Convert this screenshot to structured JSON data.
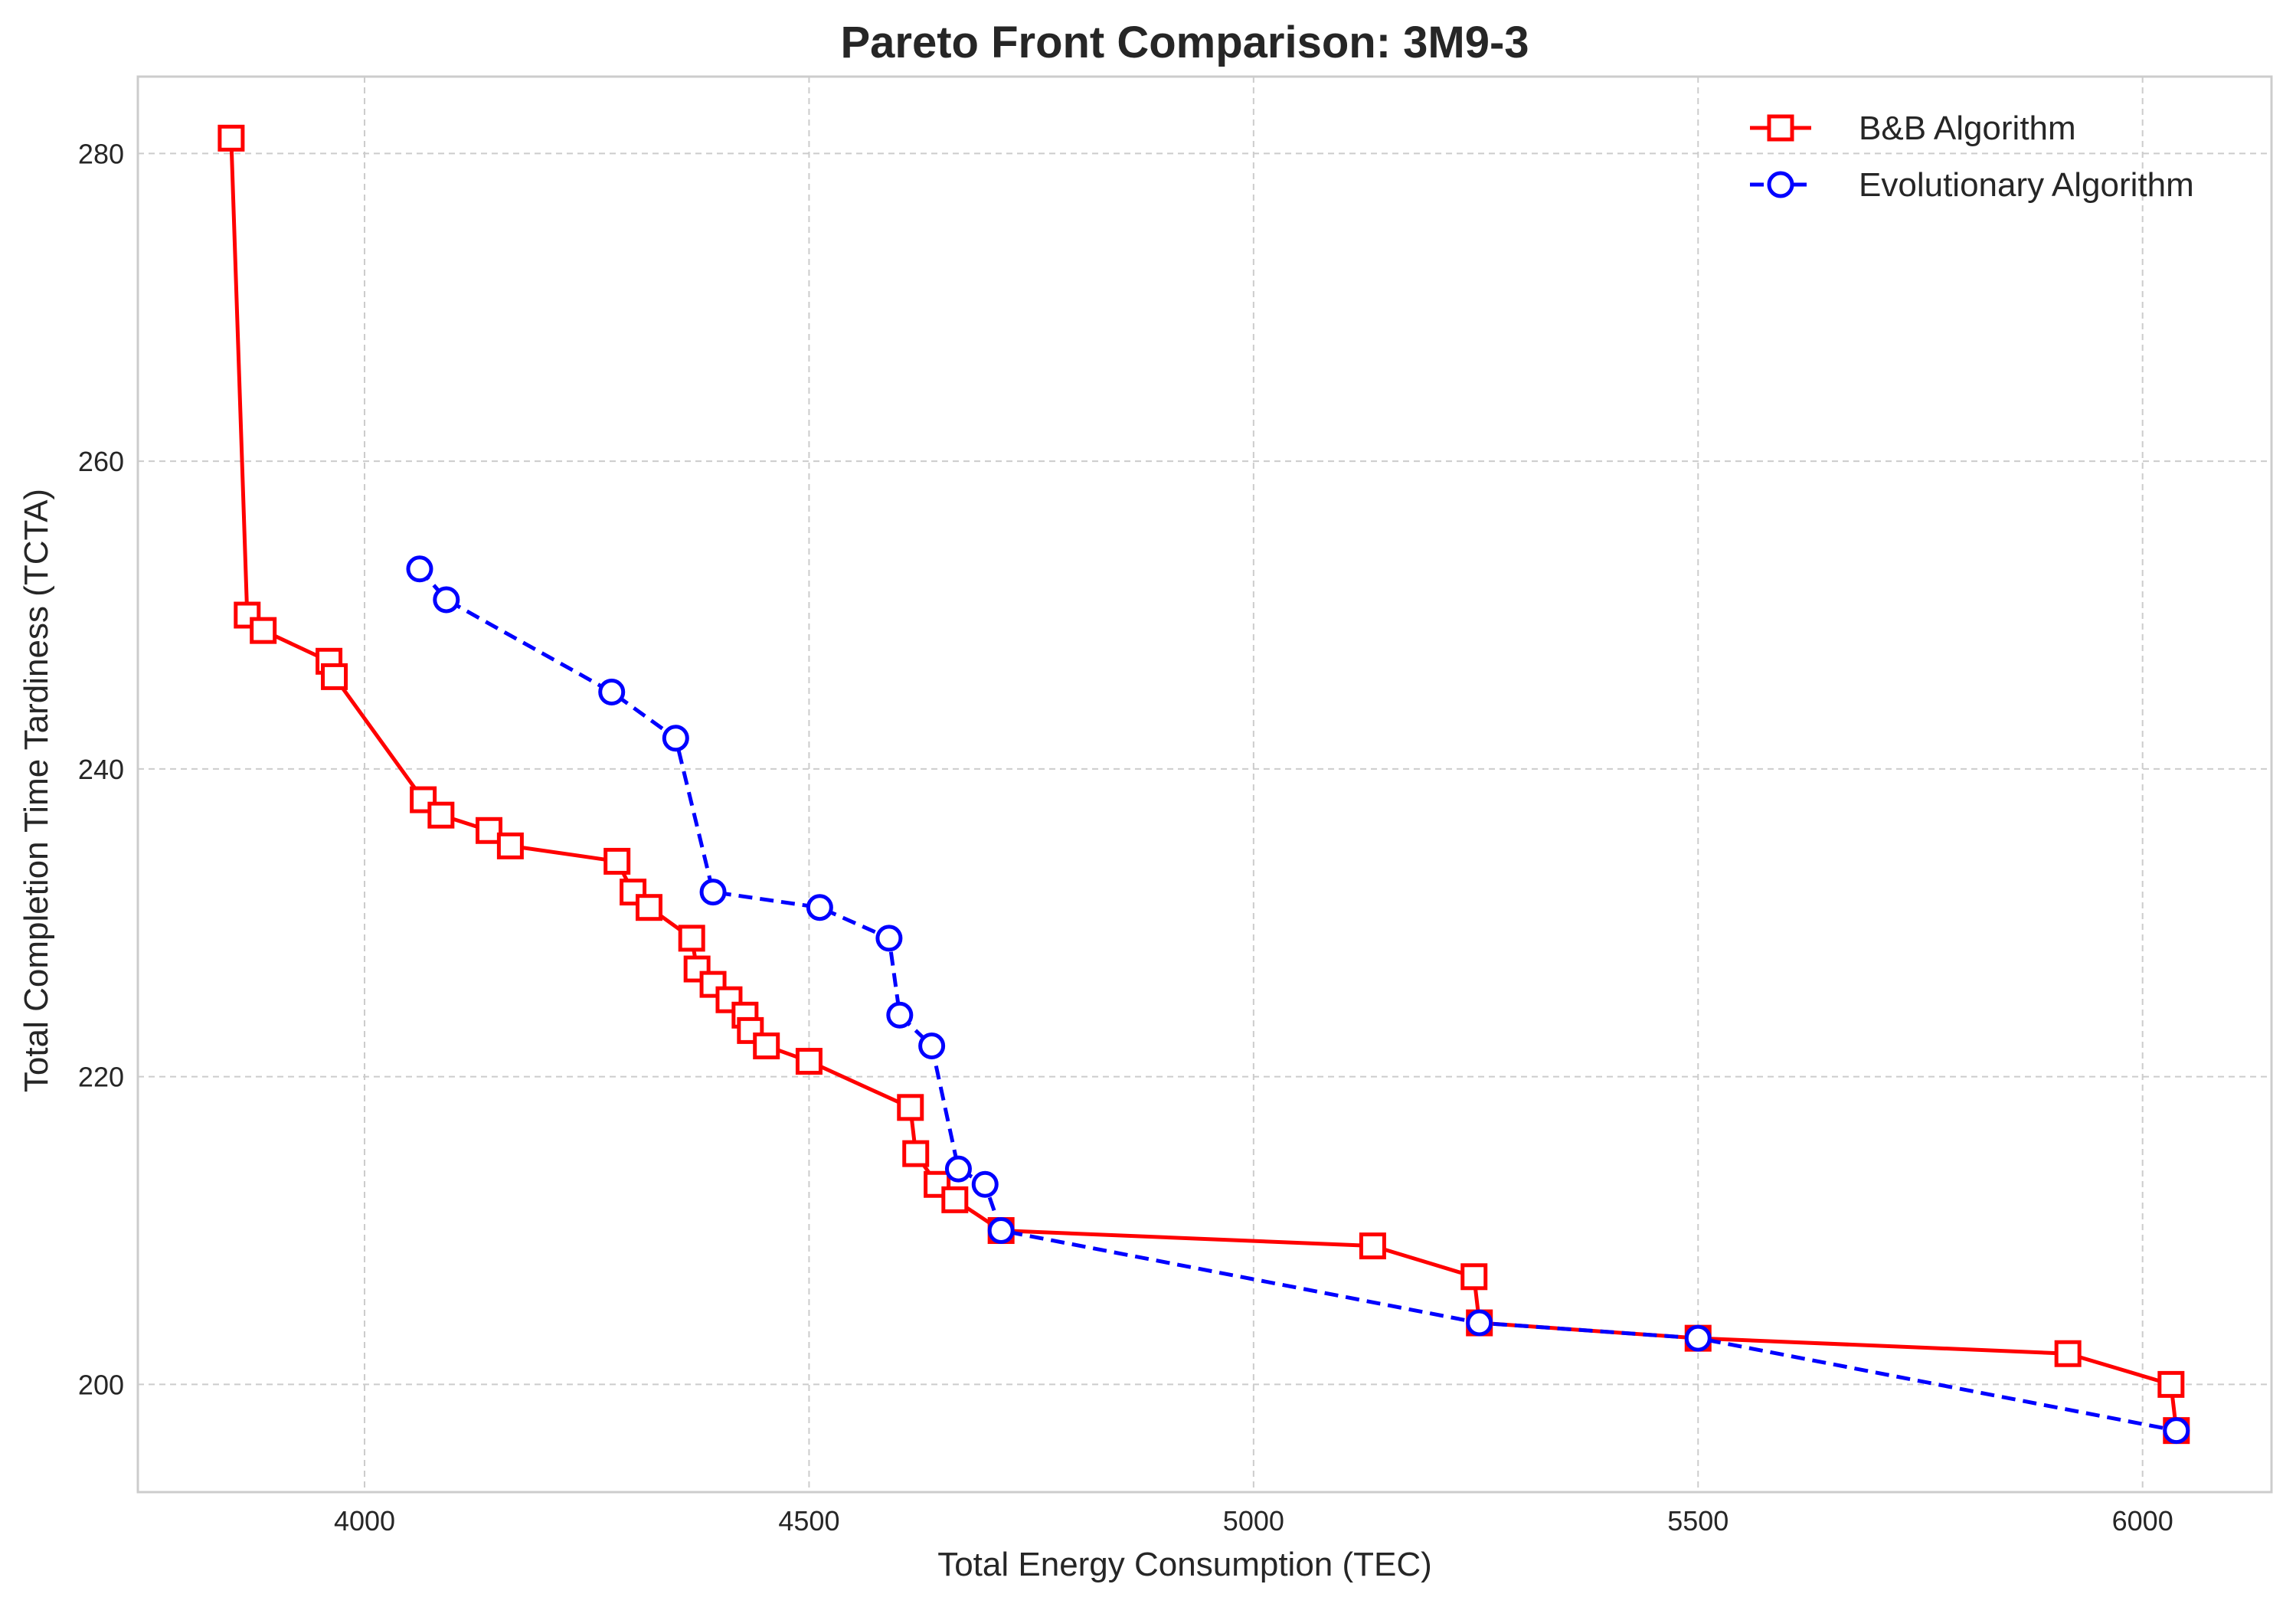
{
  "chart_data": {
    "type": "line",
    "title": "Pareto Front Comparison: 3M9-3",
    "xlabel": "Total Energy Consumption (TEC)",
    "ylabel": "Total Completion Time Tardiness (TCTA)",
    "xlim": [
      3745,
      6145
    ],
    "ylim": [
      193,
      285
    ],
    "xticks": [
      4000,
      4500,
      5000,
      5500,
      6000
    ],
    "yticks": [
      200,
      220,
      240,
      260,
      280
    ],
    "xtick_labels": [
      "4000",
      "4500",
      "5000",
      "5500",
      "6000"
    ],
    "ytick_labels": [
      "200",
      "220",
      "240",
      "260",
      "280"
    ],
    "grid": true,
    "legend_position": "top-right",
    "series": [
      {
        "name": "B&B Algorithm",
        "color": "#ff0000",
        "line_style": "solid",
        "marker": "square",
        "x": [
          3850,
          3868,
          3886,
          3960,
          3966,
          4066,
          4086,
          4140,
          4164,
          4284,
          4302,
          4320,
          4368,
          4374,
          4392,
          4410,
          4428,
          4434,
          4452,
          4500,
          4614,
          4620,
          4644,
          4664,
          4716,
          5134,
          5248,
          5254,
          5500,
          5916,
          6032,
          6038
        ],
        "y": [
          281,
          250,
          249,
          247,
          246,
          238,
          237,
          236,
          235,
          234,
          232,
          231,
          229,
          227,
          226,
          225,
          224,
          223,
          222,
          221,
          218,
          215,
          213,
          212,
          210,
          209,
          207,
          204,
          203,
          202,
          200,
          197
        ]
      },
      {
        "name": "Evolutionary Algorithm",
        "color": "#0000ff",
        "line_style": "dashed",
        "marker": "circle",
        "x": [
          4062,
          4092,
          4278,
          4350,
          4392,
          4512,
          4590,
          4602,
          4638,
          4668,
          4698,
          4716,
          5254,
          5500,
          6038
        ],
        "y": [
          253,
          251,
          245,
          242,
          232,
          231,
          229,
          224,
          222,
          214,
          213,
          210,
          204,
          203,
          197
        ]
      }
    ]
  }
}
